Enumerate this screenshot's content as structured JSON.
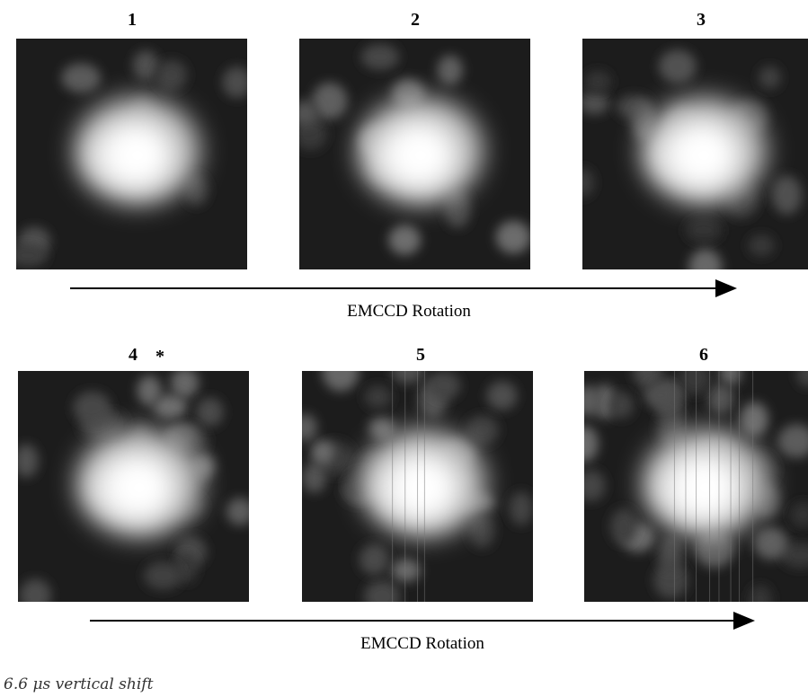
{
  "panels": [
    {
      "label": "1"
    },
    {
      "label": "2"
    },
    {
      "label": "3"
    },
    {
      "label": "4"
    },
    {
      "label": "5"
    },
    {
      "label": "6"
    }
  ],
  "marker": "*",
  "arrows": [
    {
      "label": "EMCCD Rotation"
    },
    {
      "label": "EMCCD Rotation"
    }
  ],
  "caption": "6.6 μs vertical shift"
}
